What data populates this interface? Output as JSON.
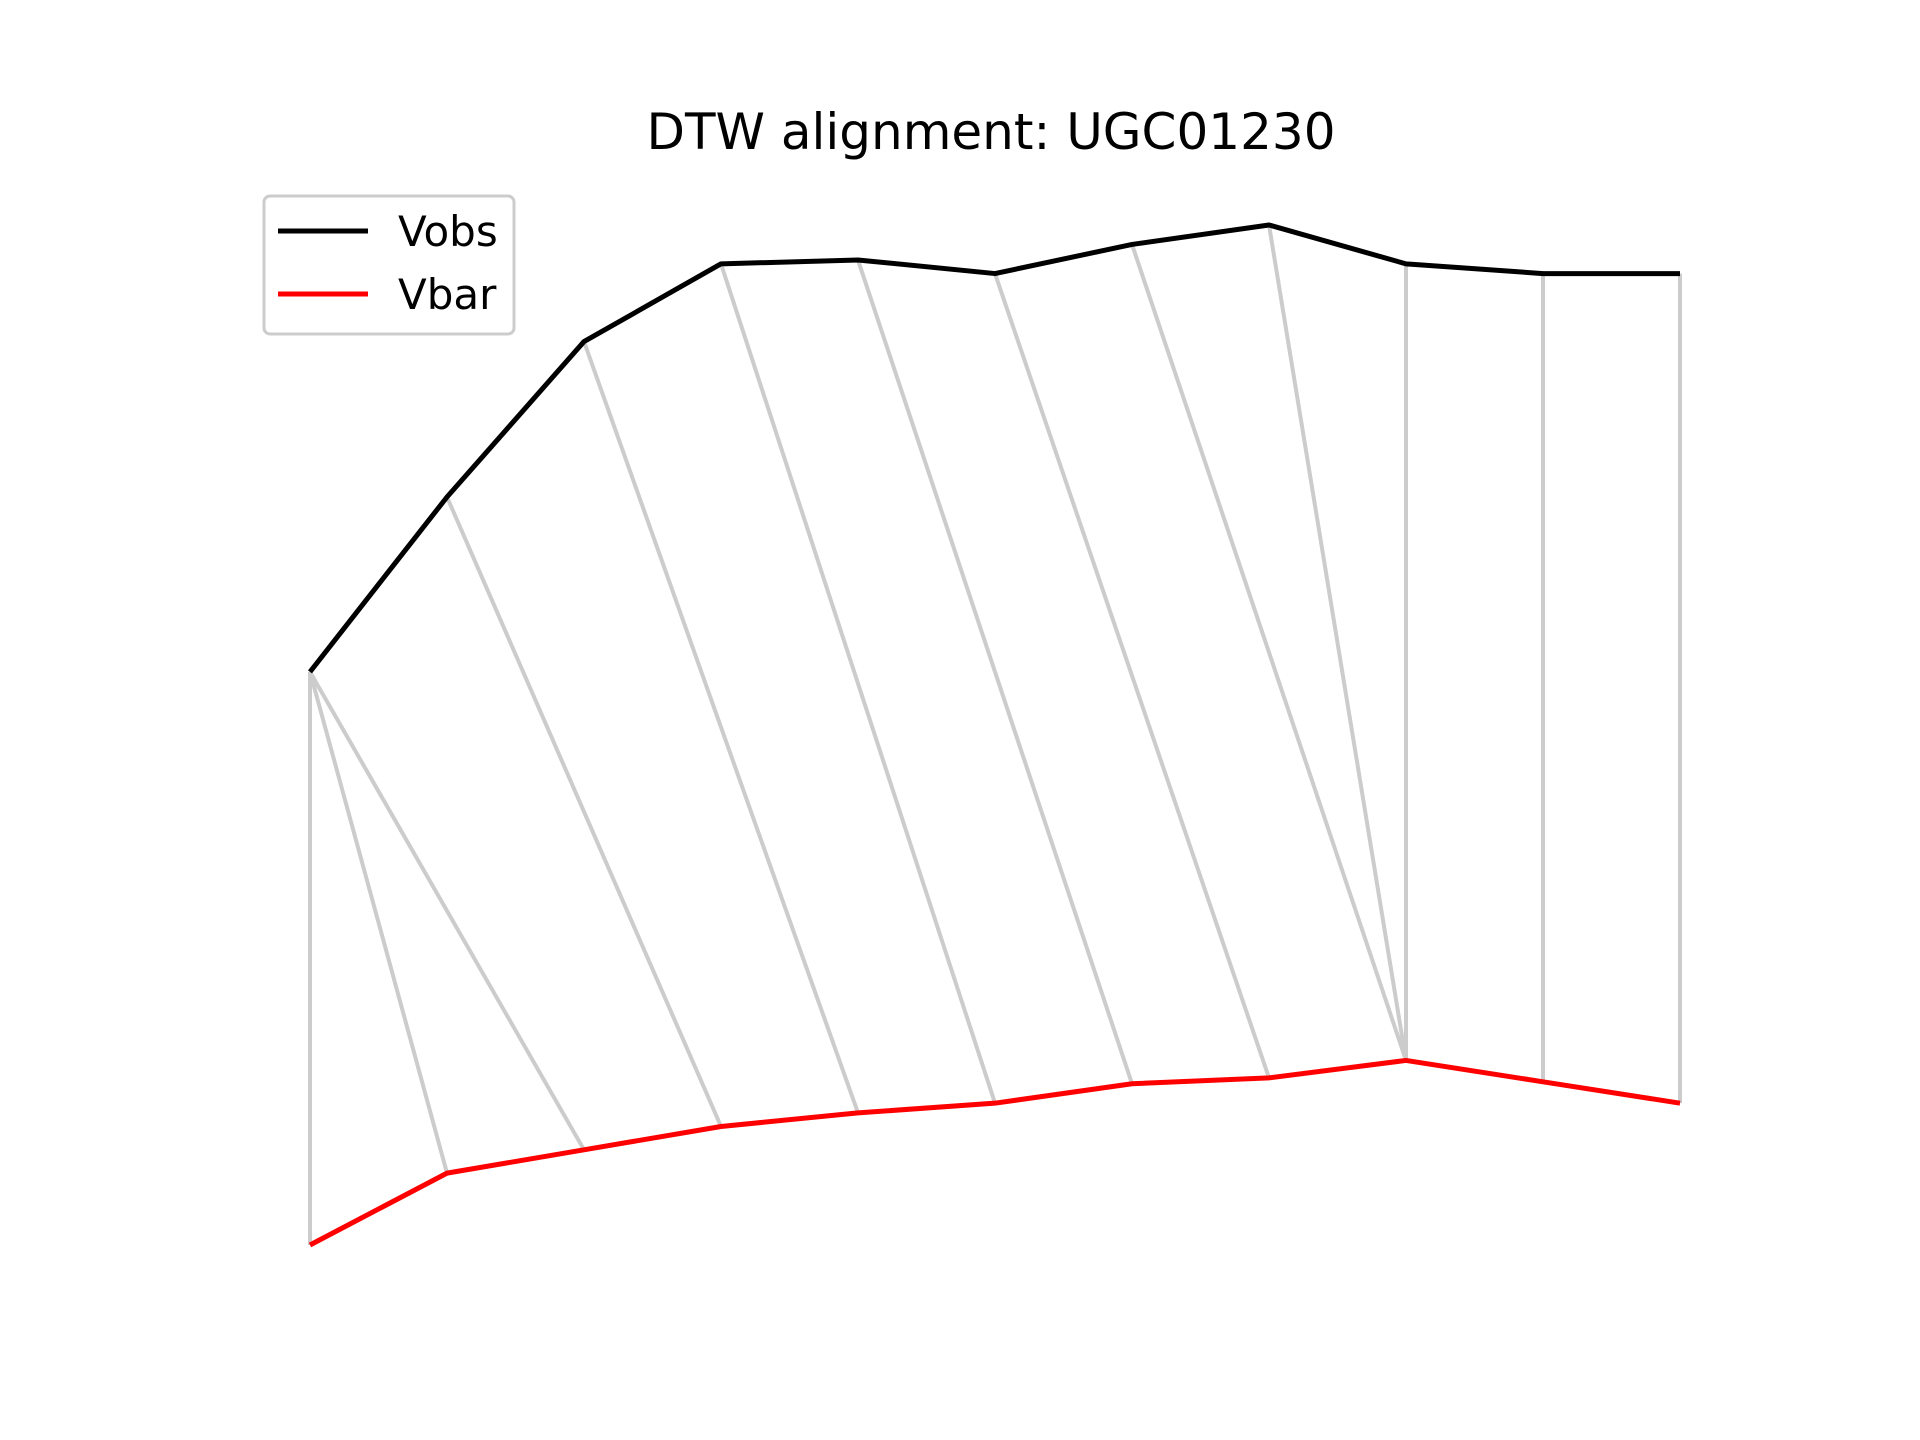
{
  "chart_data": {
    "type": "line",
    "title": "DTW alignment: UGC01230",
    "xlabel": "",
    "ylabel": "",
    "axes_visible": false,
    "grid": false,
    "legend_position": "top-left",
    "x": [
      0,
      1,
      2,
      3,
      4,
      5,
      6,
      7,
      8,
      9,
      10
    ],
    "series": [
      {
        "name": "Vobs",
        "color": "#000000",
        "values": [
          13.3,
          14.2,
          15.0,
          15.4,
          15.42,
          15.35,
          15.5,
          15.6,
          15.4,
          15.35,
          15.35
        ]
      },
      {
        "name": "Vbar",
        "color": "#ff0000",
        "values": [
          10.35,
          10.72,
          10.84,
          10.96,
          11.03,
          11.08,
          11.18,
          11.21,
          11.3,
          11.19,
          11.08
        ]
      }
    ],
    "alignment_color": "#cccccc",
    "alignment_pairs": [
      [
        0,
        0
      ],
      [
        0,
        1
      ],
      [
        0,
        2
      ],
      [
        1,
        3
      ],
      [
        2,
        4
      ],
      [
        3,
        5
      ],
      [
        4,
        6
      ],
      [
        5,
        7
      ],
      [
        6,
        8
      ],
      [
        7,
        8
      ],
      [
        8,
        8
      ],
      [
        9,
        9
      ],
      [
        10,
        10
      ]
    ]
  }
}
